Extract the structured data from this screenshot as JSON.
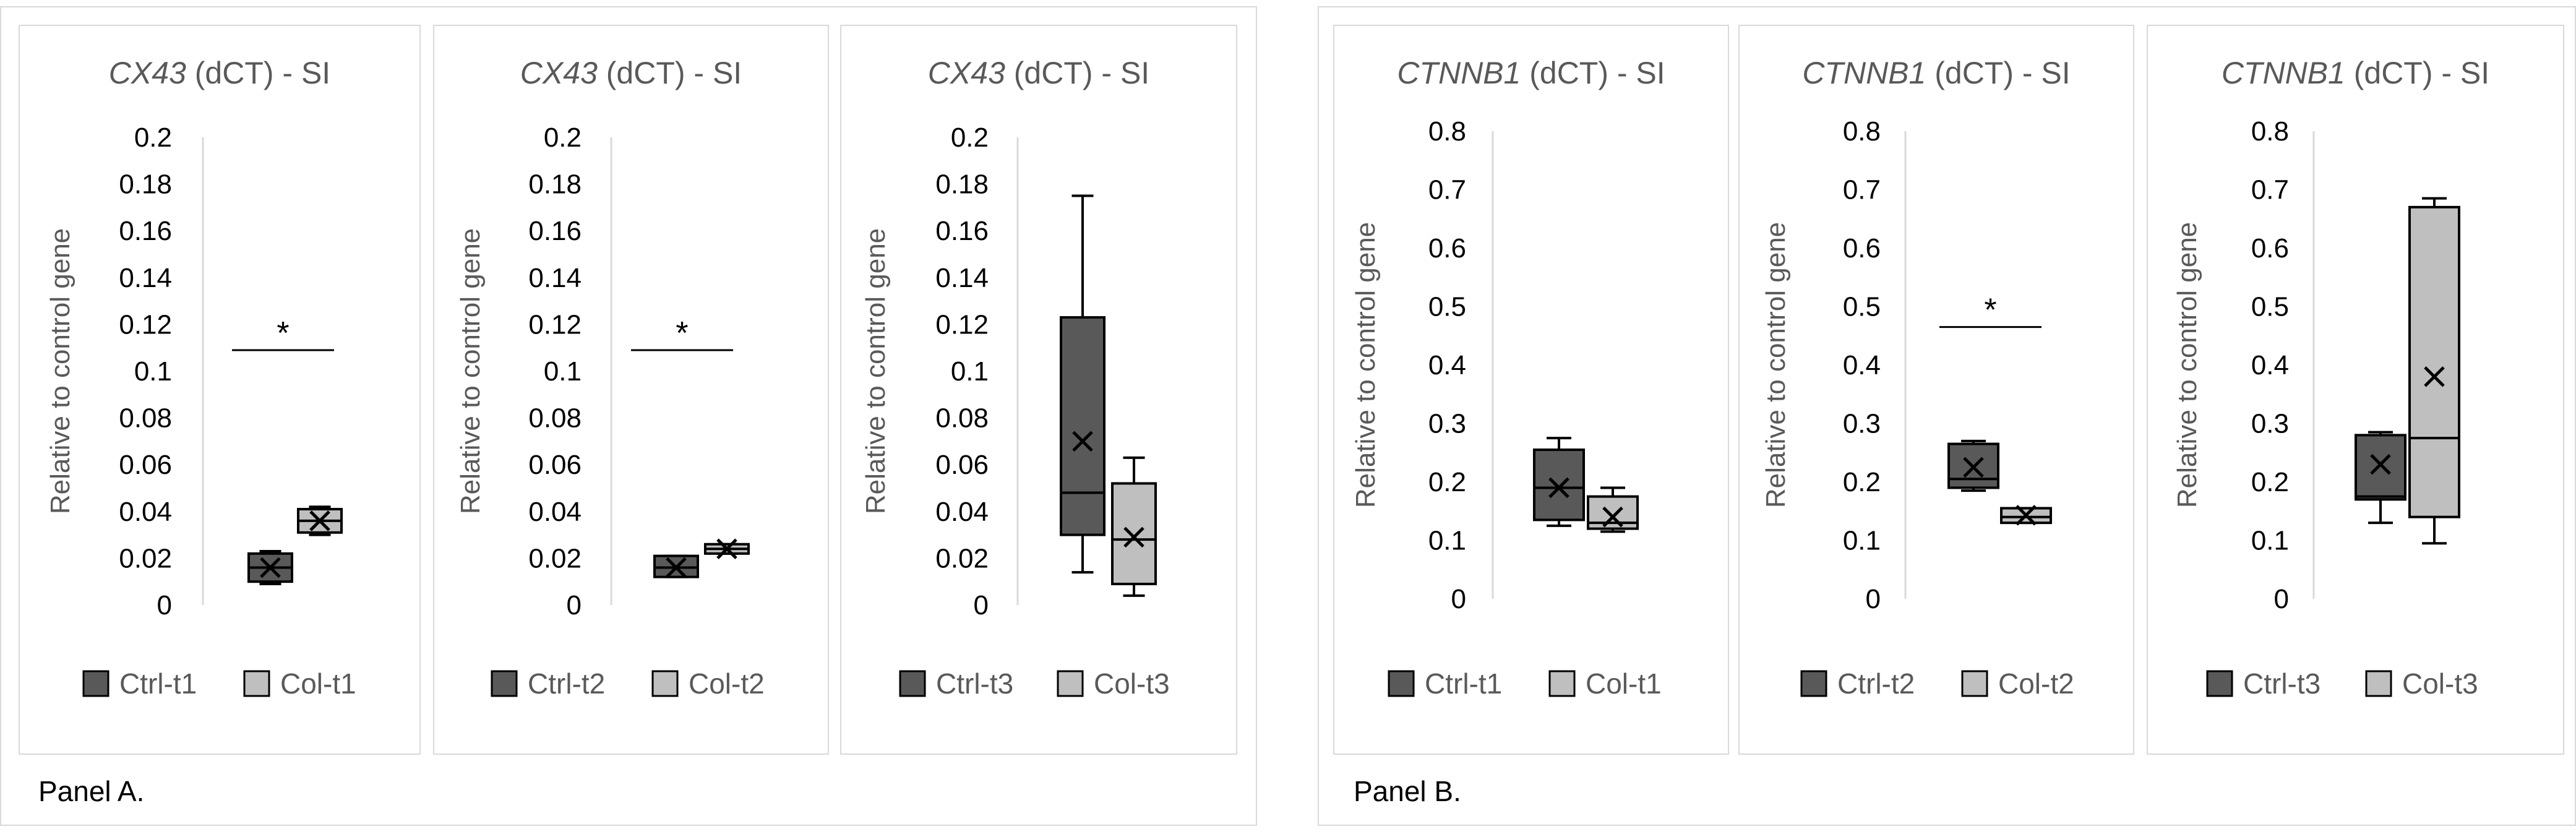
{
  "panels": [
    {
      "label": "Panel A."
    },
    {
      "label": "Panel B."
    }
  ],
  "colors": {
    "ctrl_fill": "#595959",
    "col_fill": "#bfbfbf",
    "box_stroke": "#000000",
    "axis": "#d9d9d9",
    "frame": "#d9d9d9"
  },
  "chart_data": [
    {
      "type": "box",
      "gene": "CX43",
      "title_suffix": " (dCT) - SI",
      "ylabel": "Relative to control gene",
      "ylim": [
        0,
        0.2
      ],
      "yticks": [
        "0",
        "0.02",
        "0.04",
        "0.06",
        "0.08",
        "0.1",
        "0.12",
        "0.14",
        "0.16",
        "0.18",
        "0.2"
      ],
      "series": [
        {
          "name": "Ctrl-t1",
          "min": 0.009,
          "q1": 0.01,
          "median": 0.016,
          "q3": 0.022,
          "max": 0.023,
          "mean": 0.016
        },
        {
          "name": "Col-t1",
          "min": 0.03,
          "q1": 0.031,
          "median": 0.036,
          "q3": 0.041,
          "max": 0.042,
          "mean": 0.036
        }
      ],
      "significance": {
        "text": "*",
        "y": 0.109
      }
    },
    {
      "type": "box",
      "gene": "CX43",
      "title_suffix": " (dCT) - SI",
      "ylabel": "Relative to control gene",
      "ylim": [
        0,
        0.2
      ],
      "yticks": [
        "0",
        "0.02",
        "0.04",
        "0.06",
        "0.08",
        "0.1",
        "0.12",
        "0.14",
        "0.16",
        "0.18",
        "0.2"
      ],
      "series": [
        {
          "name": "Ctrl-t2",
          "min": 0.012,
          "q1": 0.012,
          "median": 0.016,
          "q3": 0.021,
          "max": 0.021,
          "mean": 0.016
        },
        {
          "name": "Col-t2",
          "min": 0.022,
          "q1": 0.022,
          "median": 0.024,
          "q3": 0.026,
          "max": 0.026,
          "mean": 0.024
        }
      ],
      "significance": {
        "text": "*",
        "y": 0.109
      }
    },
    {
      "type": "box",
      "gene": "CX43",
      "title_suffix": " (dCT) - SI",
      "ylabel": "Relative to control gene",
      "ylim": [
        0,
        0.2
      ],
      "yticks": [
        "0",
        "0.02",
        "0.04",
        "0.06",
        "0.08",
        "0.1",
        "0.12",
        "0.14",
        "0.16",
        "0.18",
        "0.2"
      ],
      "series": [
        {
          "name": "Ctrl-t3",
          "min": 0.014,
          "q1": 0.03,
          "median": 0.048,
          "q3": 0.123,
          "max": 0.175,
          "mean": 0.07
        },
        {
          "name": "Col-t3",
          "min": 0.004,
          "q1": 0.009,
          "median": 0.028,
          "q3": 0.052,
          "max": 0.063,
          "mean": 0.029
        }
      ]
    },
    {
      "type": "box",
      "gene": "CTNNB1",
      "title_suffix": " (dCT) - SI",
      "ylabel": "Relative to control gene",
      "ylim": [
        0,
        0.8
      ],
      "yticks": [
        "0",
        "0.1",
        "0.2",
        "0.3",
        "0.4",
        "0.5",
        "0.6",
        "0.7",
        "0.8"
      ],
      "series": [
        {
          "name": "Ctrl-t1",
          "min": 0.125,
          "q1": 0.135,
          "median": 0.19,
          "q3": 0.255,
          "max": 0.275,
          "mean": 0.19
        },
        {
          "name": "Col-t1",
          "min": 0.115,
          "q1": 0.12,
          "median": 0.13,
          "q3": 0.175,
          "max": 0.19,
          "mean": 0.14
        }
      ]
    },
    {
      "type": "box",
      "gene": "CTNNB1",
      "title_suffix": " (dCT) - SI",
      "ylabel": "Relative to control gene",
      "ylim": [
        0,
        0.8
      ],
      "yticks": [
        "0",
        "0.1",
        "0.2",
        "0.3",
        "0.4",
        "0.5",
        "0.6",
        "0.7",
        "0.8"
      ],
      "series": [
        {
          "name": "Ctrl-t2",
          "min": 0.185,
          "q1": 0.19,
          "median": 0.205,
          "q3": 0.265,
          "max": 0.27,
          "mean": 0.225
        },
        {
          "name": "Col-t2",
          "min": 0.13,
          "q1": 0.13,
          "median": 0.14,
          "q3": 0.155,
          "max": 0.155,
          "mean": 0.143
        }
      ],
      "significance": {
        "text": "*",
        "y": 0.465
      }
    },
    {
      "type": "box",
      "gene": "CTNNB1",
      "title_suffix": " (dCT) - SI",
      "ylabel": "Relative to control gene",
      "ylim": [
        0,
        0.8
      ],
      "yticks": [
        "0",
        "0.1",
        "0.2",
        "0.3",
        "0.4",
        "0.5",
        "0.6",
        "0.7",
        "0.8"
      ],
      "series": [
        {
          "name": "Ctrl-t3",
          "min": 0.13,
          "q1": 0.17,
          "median": 0.175,
          "q3": 0.28,
          "max": 0.285,
          "mean": 0.23
        },
        {
          "name": "Col-t3",
          "min": 0.095,
          "q1": 0.14,
          "median": 0.275,
          "q3": 0.67,
          "max": 0.685,
          "mean": 0.38
        }
      ]
    }
  ]
}
